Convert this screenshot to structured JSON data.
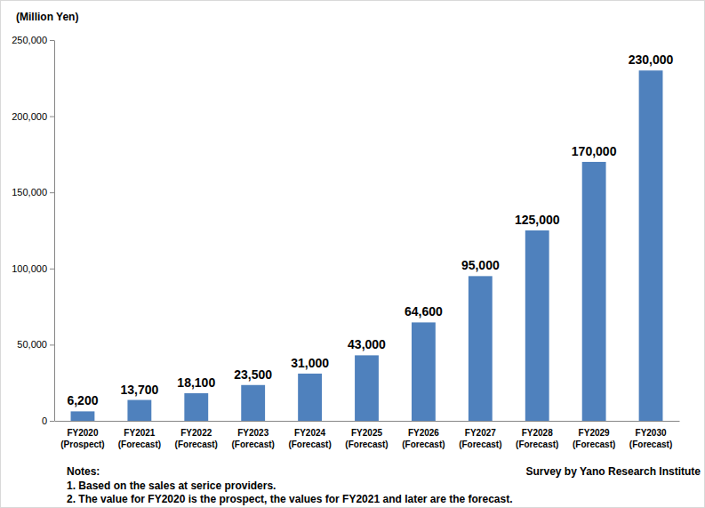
{
  "chart_data": {
    "type": "bar",
    "y_label": "(Million Yen)",
    "categories": [
      "FY2020 (Prospect)",
      "FY2021 (Forecast)",
      "FY2022 (Forecast)",
      "FY2023 (Forecast)",
      "FY2024 (Forecast)",
      "FY2025 (Forecast)",
      "FY2026 (Forecast)",
      "FY2027 (Forecast)",
      "FY2028 (Forecast)",
      "FY2029 (Forecast)",
      "FY2030 (Forecast)"
    ],
    "values": [
      6200,
      13700,
      18100,
      23500,
      31000,
      43000,
      64600,
      95000,
      125000,
      170000,
      230000
    ],
    "value_labels": [
      "6,200",
      "13,700",
      "18,100",
      "23,500",
      "31,000",
      "43,000",
      "64,600",
      "95,000",
      "125,000",
      "170,000",
      "230,000"
    ],
    "color": "#4f81bd",
    "ylim": [
      0,
      250000
    ],
    "yticks": [
      0,
      {
        "value": 50000,
        "label": "50,000"
      },
      {
        "value": 100000,
        "label": "100,000"
      },
      {
        "value": 150000,
        "label": "150,000"
      },
      {
        "value": 200000,
        "label": "200,000"
      },
      {
        "value": 250000,
        "label": "250,000"
      }
    ],
    "grid": false,
    "data_labels": true,
    "notes": [
      "Notes:",
      "1. Based on the sales at serice providers.",
      "2. The value for FY2020 is the prospect, the values for FY2021 and later are the forecast."
    ],
    "source": "Survey by Yano Research Institute"
  }
}
